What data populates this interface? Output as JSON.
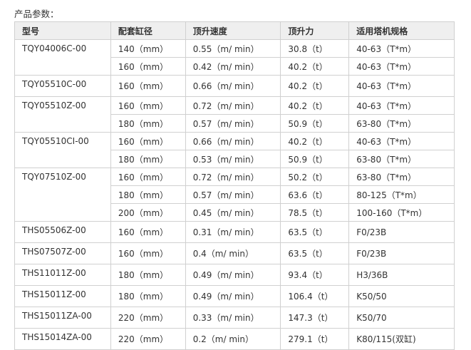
{
  "title": "产品参数：",
  "headers": [
    "型号",
    "配套缸径",
    "顶升速度",
    "顶升力",
    "适用塔机规格"
  ],
  "models": [
    {
      "model": "TQY04006C-00",
      "rows": [
        [
          "140（mm）",
          "0.55（m/ min）",
          "30.8（t）",
          "40-63（T*m）"
        ],
        [
          "160（mm）",
          "0.42（m/ min）",
          "40.2（t）",
          "40-63（T*m）"
        ]
      ]
    },
    {
      "model": "TQY05510C-00",
      "rows": [
        [
          "160（mm）",
          "0.66（m/ min）",
          "40.2（t）",
          "40-63（T*m）"
        ]
      ]
    },
    {
      "model": "TQY05510Z-00",
      "rows": [
        [
          "160（mm）",
          "0.72（m/ min）",
          "40.2（t）",
          "40-63（T*m）"
        ],
        [
          "180（mm）",
          "0.57（m/ min）",
          "50.9（t）",
          "63-80（T*m）"
        ]
      ]
    },
    {
      "model": "TQY05510CI-00",
      "rows": [
        [
          "160（mm）",
          "0.66（m/ min）",
          "40.2（t）",
          "40-63（T*m）"
        ],
        [
          "180（mm）",
          "0.53（m/ min）",
          "50.9（t）",
          "63-80（T*m）"
        ]
      ]
    },
    {
      "model": "TQY07510Z-00",
      "rows": [
        [
          "160（mm）",
          "0.72（m/ min）",
          "50.2（t）",
          "63-80（T*m）"
        ],
        [
          "180（mm）",
          "0.57（m/ min）",
          "63.6（t）",
          "80-125（T*m）"
        ],
        [
          "200（mm）",
          "0.45（m/ min）",
          "78.5（t）",
          "100-160（T*m）"
        ]
      ]
    },
    {
      "model": "THS05506Z-00",
      "rows": [
        [
          "160（mm）",
          "0.31（m/ min）",
          "63.5（t）",
          "F0/23B"
        ]
      ]
    },
    {
      "model": "THS07507Z-00",
      "rows": [
        [
          "160（mm）",
          "0.4（m/ min）",
          "63.5（t）",
          "F0/23B"
        ]
      ]
    },
    {
      "model": "THS11011Z-00",
      "rows": [
        [
          "180（mm）",
          "0.49（m/ min）",
          "93.4（t）",
          "H3/36B"
        ]
      ]
    },
    {
      "model": "THS15011Z-00",
      "rows": [
        [
          "180（mm）",
          "0.49（m/ min）",
          "106.4（t）",
          "K50/50"
        ]
      ]
    },
    {
      "model": "THS15011ZA-00",
      "rows": [
        [
          "220（mm）",
          "0.33（m/ min）",
          "147.3（t）",
          "K50/70"
        ]
      ]
    },
    {
      "model": "THS15014ZA-00",
      "rows": [
        [
          "220（mm）",
          "0.2（m/ min）",
          "279.1（t）",
          "K80/115(双缸)"
        ]
      ]
    }
  ]
}
